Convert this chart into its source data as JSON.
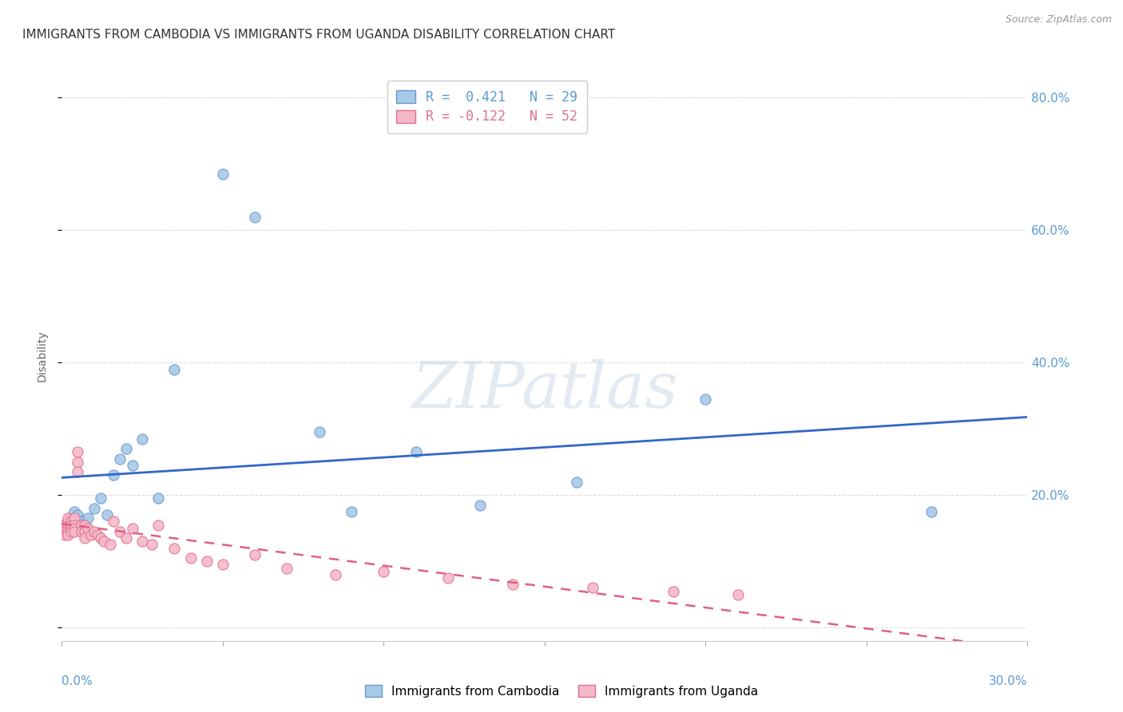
{
  "title": "IMMIGRANTS FROM CAMBODIA VS IMMIGRANTS FROM UGANDA DISABILITY CORRELATION CHART",
  "source": "Source: ZipAtlas.com",
  "ylabel": "Disability",
  "y_right_labels": [
    "",
    "20.0%",
    "40.0%",
    "60.0%",
    "80.0%"
  ],
  "xlim": [
    0.0,
    0.3
  ],
  "ylim": [
    -0.02,
    0.84
  ],
  "watermark_text": "ZIPatlas",
  "legend_line1": "R =  0.421   N = 29",
  "legend_line2": "R = -0.122   N = 52",
  "color_cambodia_fill": "#a8c8e8",
  "color_cambodia_edge": "#6699cc",
  "color_uganda_fill": "#f5b8c8",
  "color_uganda_edge": "#e07090",
  "color_line_blue": "#3366cc",
  "color_line_pink": "#e06080",
  "background_color": "#ffffff",
  "grid_color": "#dddddd",
  "cambodia_x": [
    0.001,
    0.002,
    0.002,
    0.003,
    0.004,
    0.005,
    0.005,
    0.006,
    0.007,
    0.008,
    0.01,
    0.012,
    0.014,
    0.016,
    0.018,
    0.02,
    0.022,
    0.025,
    0.03,
    0.035,
    0.05,
    0.06,
    0.08,
    0.09,
    0.11,
    0.13,
    0.16,
    0.2,
    0.27
  ],
  "cambodia_y": [
    0.155,
    0.16,
    0.15,
    0.165,
    0.175,
    0.17,
    0.155,
    0.16,
    0.155,
    0.165,
    0.18,
    0.195,
    0.17,
    0.23,
    0.255,
    0.27,
    0.245,
    0.285,
    0.195,
    0.39,
    0.685,
    0.62,
    0.295,
    0.175,
    0.265,
    0.185,
    0.22,
    0.345,
    0.175
  ],
  "uganda_x": [
    0.001,
    0.001,
    0.001,
    0.001,
    0.002,
    0.002,
    0.002,
    0.002,
    0.002,
    0.003,
    0.003,
    0.003,
    0.003,
    0.004,
    0.004,
    0.004,
    0.004,
    0.005,
    0.005,
    0.005,
    0.006,
    0.006,
    0.007,
    0.007,
    0.007,
    0.008,
    0.009,
    0.01,
    0.011,
    0.012,
    0.013,
    0.015,
    0.016,
    0.018,
    0.02,
    0.022,
    0.025,
    0.028,
    0.03,
    0.035,
    0.04,
    0.045,
    0.05,
    0.06,
    0.07,
    0.085,
    0.1,
    0.12,
    0.14,
    0.165,
    0.19,
    0.21
  ],
  "uganda_y": [
    0.155,
    0.15,
    0.145,
    0.14,
    0.155,
    0.16,
    0.165,
    0.145,
    0.14,
    0.16,
    0.155,
    0.15,
    0.145,
    0.165,
    0.155,
    0.15,
    0.145,
    0.265,
    0.25,
    0.235,
    0.155,
    0.145,
    0.155,
    0.145,
    0.135,
    0.15,
    0.14,
    0.145,
    0.14,
    0.135,
    0.13,
    0.125,
    0.16,
    0.145,
    0.135,
    0.15,
    0.13,
    0.125,
    0.155,
    0.12,
    0.105,
    0.1,
    0.095,
    0.11,
    0.09,
    0.08,
    0.085,
    0.075,
    0.065,
    0.06,
    0.055,
    0.05
  ]
}
